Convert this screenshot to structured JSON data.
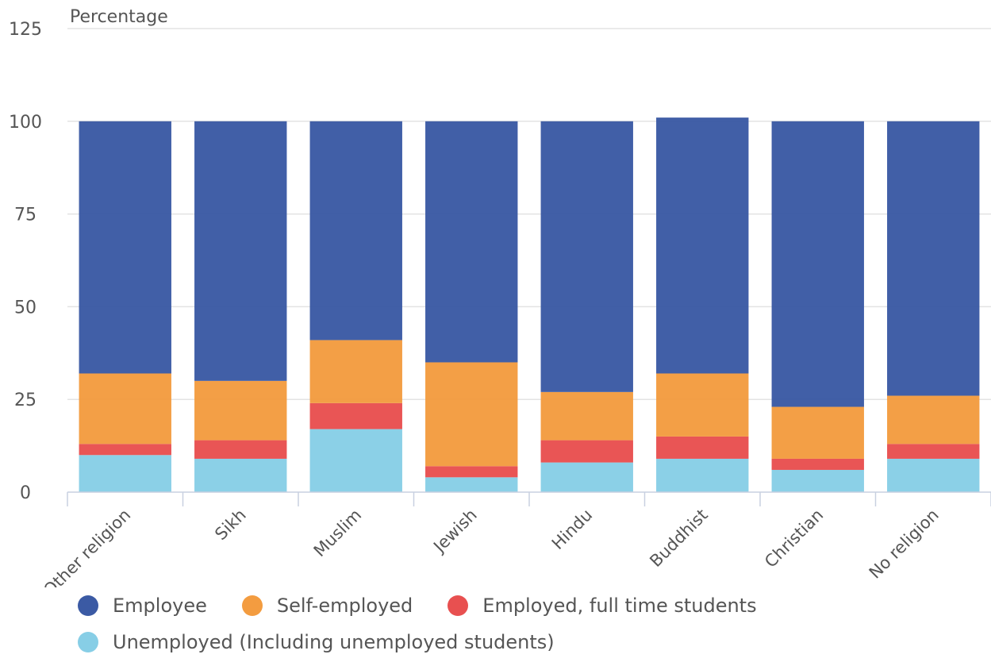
{
  "chart_data": {
    "type": "bar",
    "stacked": true,
    "ylabel": "Percentage",
    "ylim": [
      0,
      125
    ],
    "yticks": [
      0,
      25,
      50,
      75,
      100,
      125
    ],
    "grid": true,
    "legend_position": "bottom",
    "categories": [
      "Other religion",
      "Sikh",
      "Muslim",
      "Jewish",
      "Hindu",
      "Buddhist",
      "Christian",
      "No religion"
    ],
    "series": [
      {
        "name": "Unemployed (Including unemployed students)",
        "color": "#87CEE6",
        "values": [
          10,
          9,
          17,
          4,
          8,
          9,
          6,
          9
        ]
      },
      {
        "name": "Employed, full time students",
        "color": "#E85050",
        "values": [
          3,
          5,
          7,
          3,
          6,
          6,
          3,
          4
        ]
      },
      {
        "name": "Self-employed",
        "color": "#F39C40",
        "values": [
          19,
          16,
          17,
          28,
          13,
          17,
          14,
          13
        ]
      },
      {
        "name": "Employee",
        "color": "#3B5AA4",
        "values": [
          68,
          70,
          59,
          65,
          73,
          69,
          77,
          74
        ]
      }
    ]
  },
  "legend": {
    "rows": [
      [
        {
          "label": "Employee",
          "color": "#3B5AA4"
        },
        {
          "label": "Self-employed",
          "color": "#F39C40"
        },
        {
          "label": "Employed, full time students",
          "color": "#E85050"
        }
      ],
      [
        {
          "label": "Unemployed (Including unemployed students)",
          "color": "#87CEE6"
        }
      ]
    ]
  }
}
